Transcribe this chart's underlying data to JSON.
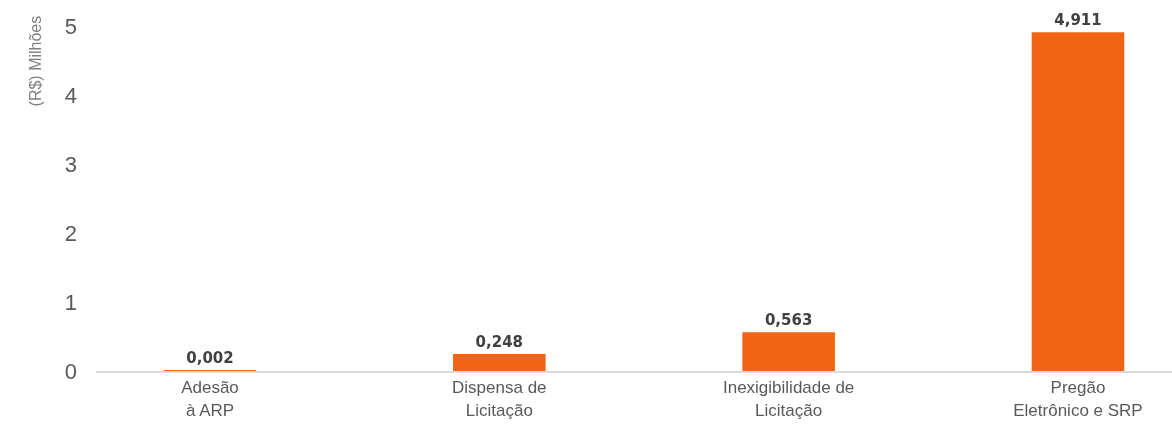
{
  "chart_data": {
    "type": "bar",
    "ylabel": "(R$) Milhões",
    "categories": [
      "Adesão\nà ARP",
      "Dispensa de\nLicitação",
      "Inexigibilidade de\nLicitação",
      "Pregão\nEletrônico e SRP"
    ],
    "values": [
      0.002,
      0.248,
      0.563,
      4.911
    ],
    "value_labels": [
      "0,002",
      "0,248",
      "0,563",
      "4,911"
    ],
    "color": "#f06414",
    "ylim": [
      0,
      5
    ],
    "yticks": [
      0,
      1,
      2,
      3,
      4,
      5
    ],
    "grid": false,
    "legend": false
  }
}
